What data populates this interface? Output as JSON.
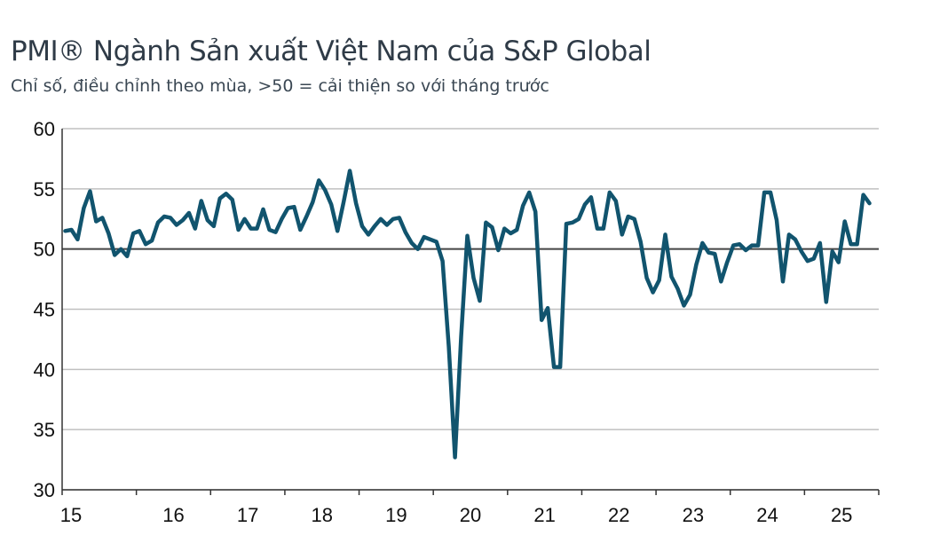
{
  "title": "PMI® Ngành Sản xuất Việt Nam của S&P Global",
  "subtitle": "Chỉ số, điều chỉnh theo mùa, >50 = cải thiện so với tháng trước",
  "colors": {
    "line": "#11546e",
    "grid": "#c0c0c0",
    "reference": "#444444"
  },
  "chart_data": {
    "type": "line",
    "title": "PMI® Ngành Sản xuất Việt Nam của S&P Global",
    "subtitle": "Chỉ số, điều chỉnh theo mùa, >50 = cải thiện so với tháng trước",
    "xlabel": "",
    "ylabel": "",
    "ylim": [
      30,
      60
    ],
    "yticks": [
      60,
      55,
      50,
      45,
      40,
      35,
      30
    ],
    "xticks": [
      "15",
      "16",
      "17",
      "18",
      "19",
      "20",
      "21",
      "22",
      "23",
      "24",
      "25"
    ],
    "start": "2015-01",
    "reference_line": 50,
    "grid": true,
    "series": [
      {
        "name": "PMI",
        "values": [
          51.5,
          51.6,
          50.8,
          53.4,
          54.8,
          52.3,
          52.6,
          51.3,
          49.5,
          50.0,
          49.4,
          51.3,
          51.5,
          50.4,
          50.7,
          52.2,
          52.7,
          52.6,
          52.0,
          52.4,
          53.0,
          51.7,
          54.0,
          52.4,
          51.9,
          54.2,
          54.6,
          54.1,
          51.6,
          52.5,
          51.7,
          51.7,
          53.3,
          51.6,
          51.4,
          52.5,
          53.4,
          53.5,
          51.6,
          52.7,
          53.9,
          55.7,
          54.9,
          53.7,
          51.5,
          53.9,
          56.5,
          53.8,
          51.9,
          51.2,
          51.9,
          52.5,
          52.0,
          52.5,
          52.6,
          51.4,
          50.5,
          50.0,
          51.0,
          50.8,
          50.6,
          49.0,
          41.9,
          32.7,
          42.7,
          51.1,
          47.6,
          45.7,
          52.2,
          51.8,
          49.9,
          51.7,
          51.3,
          51.6,
          53.6,
          54.7,
          53.1,
          44.1,
          45.1,
          40.2,
          40.2,
          52.1,
          52.2,
          52.5,
          53.7,
          54.3,
          51.7,
          51.7,
          54.7,
          54.0,
          51.2,
          52.7,
          52.5,
          50.6,
          47.6,
          46.4,
          47.4,
          51.2,
          47.7,
          46.7,
          45.3,
          46.2,
          48.7,
          50.5,
          49.7,
          49.6,
          47.3,
          48.9,
          50.3,
          50.4,
          49.9,
          50.3,
          50.3,
          54.7,
          54.7,
          52.4,
          47.3,
          51.2,
          50.8,
          49.8,
          49.0,
          49.2,
          50.5,
          45.6,
          49.8,
          48.9,
          52.3,
          50.4,
          50.4,
          54.5,
          53.8
        ]
      }
    ]
  }
}
